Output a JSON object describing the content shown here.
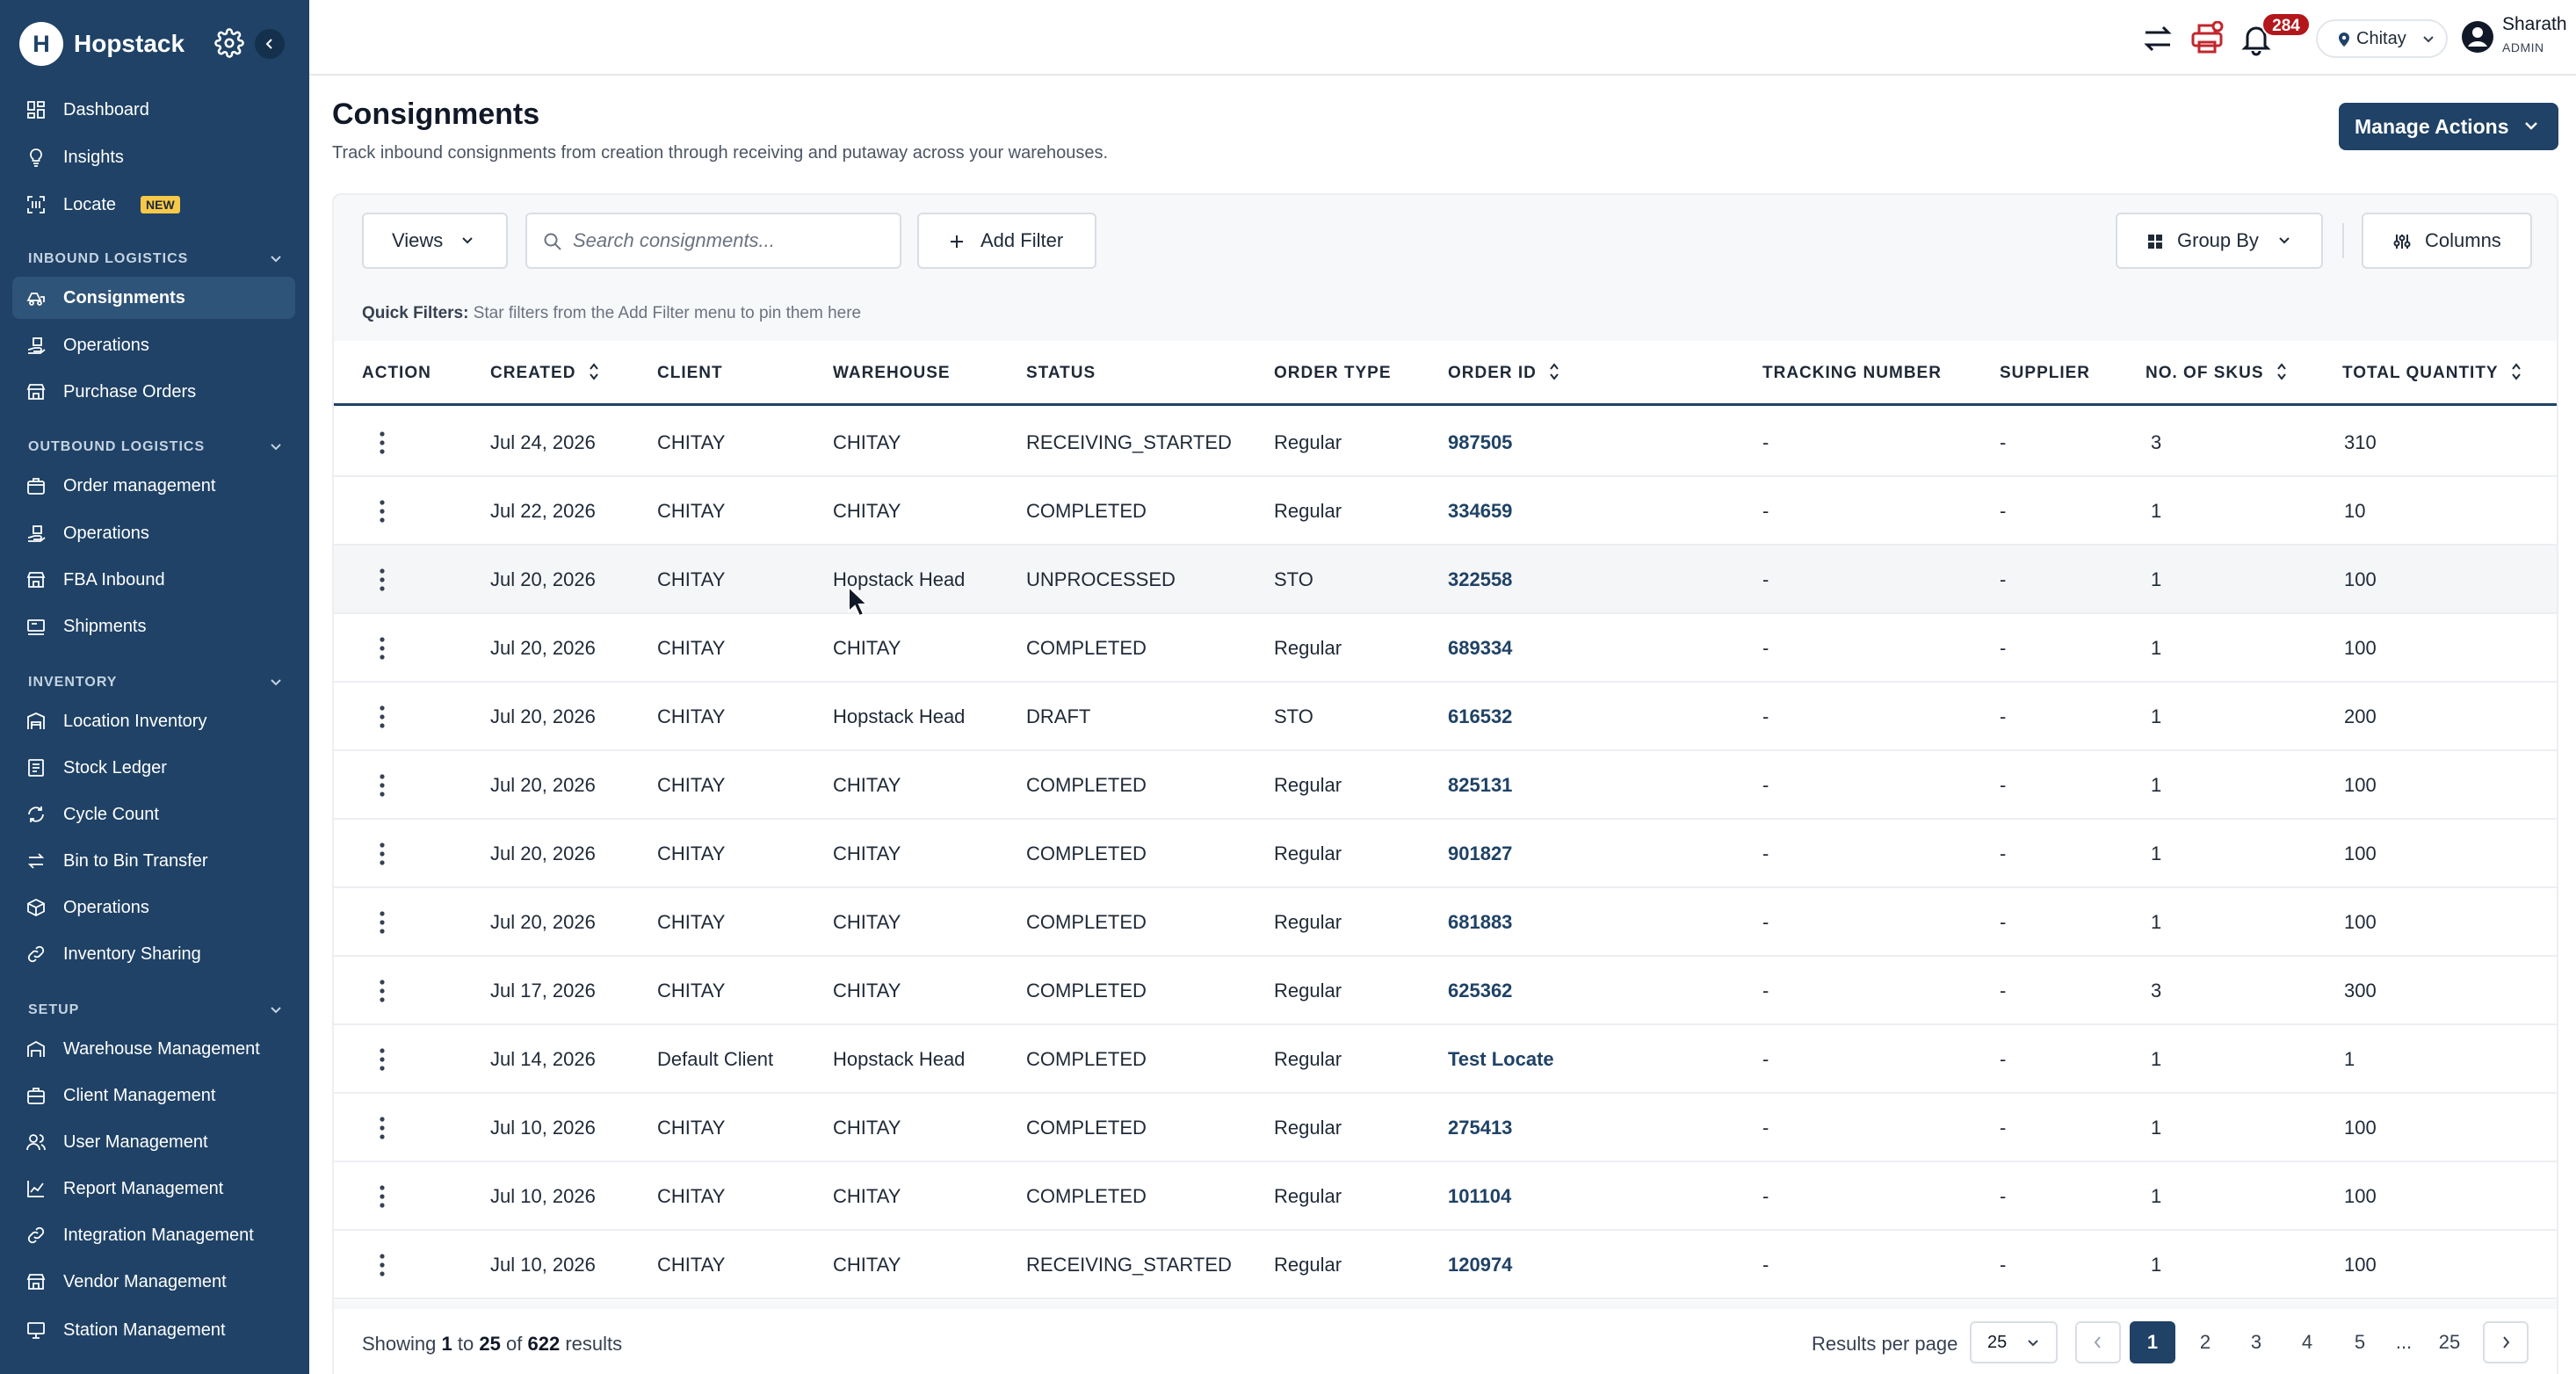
{
  "brand": {
    "name": "Hopstack",
    "logo_letter": "H"
  },
  "sidebar": {
    "top_items": [
      {
        "label": "Dashboard",
        "icon": "dashboard-icon"
      },
      {
        "label": "Insights",
        "icon": "lightbulb-icon"
      },
      {
        "label": "Locate",
        "icon": "scan-icon",
        "badge": "NEW"
      }
    ],
    "sections": [
      {
        "title": "INBOUND LOGISTICS",
        "items": [
          {
            "label": "Consignments",
            "icon": "truck-icon",
            "active": true
          },
          {
            "label": "Operations",
            "icon": "hand-box-icon"
          },
          {
            "label": "Purchase Orders",
            "icon": "store-icon"
          }
        ]
      },
      {
        "title": "OUTBOUND LOGISTICS",
        "items": [
          {
            "label": "Order management",
            "icon": "box-icon"
          },
          {
            "label": "Operations",
            "icon": "hand-box-icon"
          },
          {
            "label": "FBA Inbound",
            "icon": "store-icon"
          },
          {
            "label": "Shipments",
            "icon": "shipment-icon"
          }
        ]
      },
      {
        "title": "INVENTORY",
        "items": [
          {
            "label": "Location Inventory",
            "icon": "building-icon"
          },
          {
            "label": "Stock Ledger",
            "icon": "ledger-icon"
          },
          {
            "label": "Cycle Count",
            "icon": "refresh-icon"
          },
          {
            "label": "Bin to Bin Transfer",
            "icon": "transfer-icon"
          },
          {
            "label": "Operations",
            "icon": "cube-icon"
          },
          {
            "label": "Inventory Sharing",
            "icon": "link-icon"
          }
        ]
      },
      {
        "title": "SETUP",
        "items": [
          {
            "label": "Warehouse Management",
            "icon": "warehouse-icon"
          },
          {
            "label": "Client Management",
            "icon": "briefcase-icon"
          },
          {
            "label": "User Management",
            "icon": "users-icon"
          },
          {
            "label": "Report Management",
            "icon": "chart-icon"
          },
          {
            "label": "Integration Management",
            "icon": "link-icon"
          },
          {
            "label": "Vendor Management",
            "icon": "store-icon"
          },
          {
            "label": "Station Management",
            "icon": "monitor-icon"
          }
        ]
      }
    ]
  },
  "topbar": {
    "notification_count": "284",
    "location": "Chitay",
    "user_name": "Sharath",
    "user_role": "ADMIN"
  },
  "page": {
    "title": "Consignments",
    "subtitle": "Track inbound consignments from creation through receiving and putaway across your warehouses.",
    "manage_actions": "Manage Actions"
  },
  "toolbar": {
    "views": "Views",
    "search_placeholder": "Search consignments...",
    "add_filter": "Add Filter",
    "group_by": "Group By",
    "columns": "Columns"
  },
  "quick_filters": {
    "label": "Quick Filters:",
    "hint": "Star filters from the Add Filter menu to pin them here"
  },
  "table": {
    "columns": {
      "action": "ACTION",
      "created": "CREATED",
      "client": "CLIENT",
      "warehouse": "WAREHOUSE",
      "status": "STATUS",
      "order_type": "ORDER TYPE",
      "order_id": "ORDER ID",
      "tracking": "TRACKING NUMBER",
      "supplier": "SUPPLIER",
      "skus": "NO. OF SKUS",
      "qty": "TOTAL QUANTITY"
    },
    "rows": [
      {
        "created": "Jul 24, 2026",
        "client": "CHITAY",
        "warehouse": "CHITAY",
        "status": "RECEIVING_STARTED",
        "order_type": "Regular",
        "order_id": "987505",
        "tracking": "-",
        "supplier": "-",
        "skus": "3",
        "qty": "310"
      },
      {
        "created": "Jul 22, 2026",
        "client": "CHITAY",
        "warehouse": "CHITAY",
        "status": "COMPLETED",
        "order_type": "Regular",
        "order_id": "334659",
        "tracking": "-",
        "supplier": "-",
        "skus": "1",
        "qty": "10"
      },
      {
        "created": "Jul 20, 2026",
        "client": "CHITAY",
        "warehouse": "Hopstack Head",
        "status": "UNPROCESSED",
        "order_type": "STO",
        "order_id": "322558",
        "tracking": "-",
        "supplier": "-",
        "skus": "1",
        "qty": "100"
      },
      {
        "created": "Jul 20, 2026",
        "client": "CHITAY",
        "warehouse": "CHITAY",
        "status": "COMPLETED",
        "order_type": "Regular",
        "order_id": "689334",
        "tracking": "-",
        "supplier": "-",
        "skus": "1",
        "qty": "100"
      },
      {
        "created": "Jul 20, 2026",
        "client": "CHITAY",
        "warehouse": "Hopstack Head",
        "status": "DRAFT",
        "order_type": "STO",
        "order_id": "616532",
        "tracking": "-",
        "supplier": "-",
        "skus": "1",
        "qty": "200"
      },
      {
        "created": "Jul 20, 2026",
        "client": "CHITAY",
        "warehouse": "CHITAY",
        "status": "COMPLETED",
        "order_type": "Regular",
        "order_id": "825131",
        "tracking": "-",
        "supplier": "-",
        "skus": "1",
        "qty": "100"
      },
      {
        "created": "Jul 20, 2026",
        "client": "CHITAY",
        "warehouse": "CHITAY",
        "status": "COMPLETED",
        "order_type": "Regular",
        "order_id": "901827",
        "tracking": "-",
        "supplier": "-",
        "skus": "1",
        "qty": "100"
      },
      {
        "created": "Jul 20, 2026",
        "client": "CHITAY",
        "warehouse": "CHITAY",
        "status": "COMPLETED",
        "order_type": "Regular",
        "order_id": "681883",
        "tracking": "-",
        "supplier": "-",
        "skus": "1",
        "qty": "100"
      },
      {
        "created": "Jul 17, 2026",
        "client": "CHITAY",
        "warehouse": "CHITAY",
        "status": "COMPLETED",
        "order_type": "Regular",
        "order_id": "625362",
        "tracking": "-",
        "supplier": "-",
        "skus": "3",
        "qty": "300"
      },
      {
        "created": "Jul 14, 2026",
        "client": "Default Client",
        "warehouse": "Hopstack Head",
        "status": "COMPLETED",
        "order_type": "Regular",
        "order_id": "Test Locate",
        "tracking": "-",
        "supplier": "-",
        "skus": "1",
        "qty": "1"
      },
      {
        "created": "Jul 10, 2026",
        "client": "CHITAY",
        "warehouse": "CHITAY",
        "status": "COMPLETED",
        "order_type": "Regular",
        "order_id": "275413",
        "tracking": "-",
        "supplier": "-",
        "skus": "1",
        "qty": "100"
      },
      {
        "created": "Jul 10, 2026",
        "client": "CHITAY",
        "warehouse": "CHITAY",
        "status": "COMPLETED",
        "order_type": "Regular",
        "order_id": "101104",
        "tracking": "-",
        "supplier": "-",
        "skus": "1",
        "qty": "100"
      },
      {
        "created": "Jul 10, 2026",
        "client": "CHITAY",
        "warehouse": "CHITAY",
        "status": "RECEIVING_STARTED",
        "order_type": "Regular",
        "order_id": "120974",
        "tracking": "-",
        "supplier": "-",
        "skus": "1",
        "qty": "100"
      }
    ]
  },
  "pagination": {
    "showing_prefix": "Showing",
    "from": "1",
    "to_word": "to",
    "to": "25",
    "of_word": "of",
    "total": "622",
    "results_word": "results",
    "per_page_label": "Results per page",
    "per_page": "25",
    "pages": [
      "1",
      "2",
      "3",
      "4",
      "5",
      "...",
      "25"
    ],
    "current": "1"
  },
  "colors": {
    "sidebar": "#1f4266",
    "accent": "#1f4266",
    "badge": "#b3161b",
    "new_badge": "#f7c948"
  }
}
